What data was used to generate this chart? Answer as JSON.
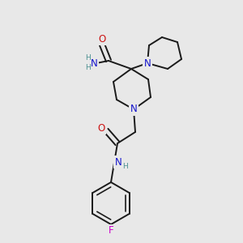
{
  "bg_color": "#e8e8e8",
  "bond_color": "#1a1a1a",
  "N_color": "#1414cc",
  "O_color": "#cc1414",
  "F_color": "#cc00cc",
  "H_color": "#4a9090",
  "font_size_atom": 8.5,
  "font_size_small": 6.5,
  "lw": 1.4,
  "figsize": [
    3.0,
    3.0
  ],
  "dpi": 100,
  "xlim": [
    0,
    300
  ],
  "ylim": [
    0,
    300
  ]
}
